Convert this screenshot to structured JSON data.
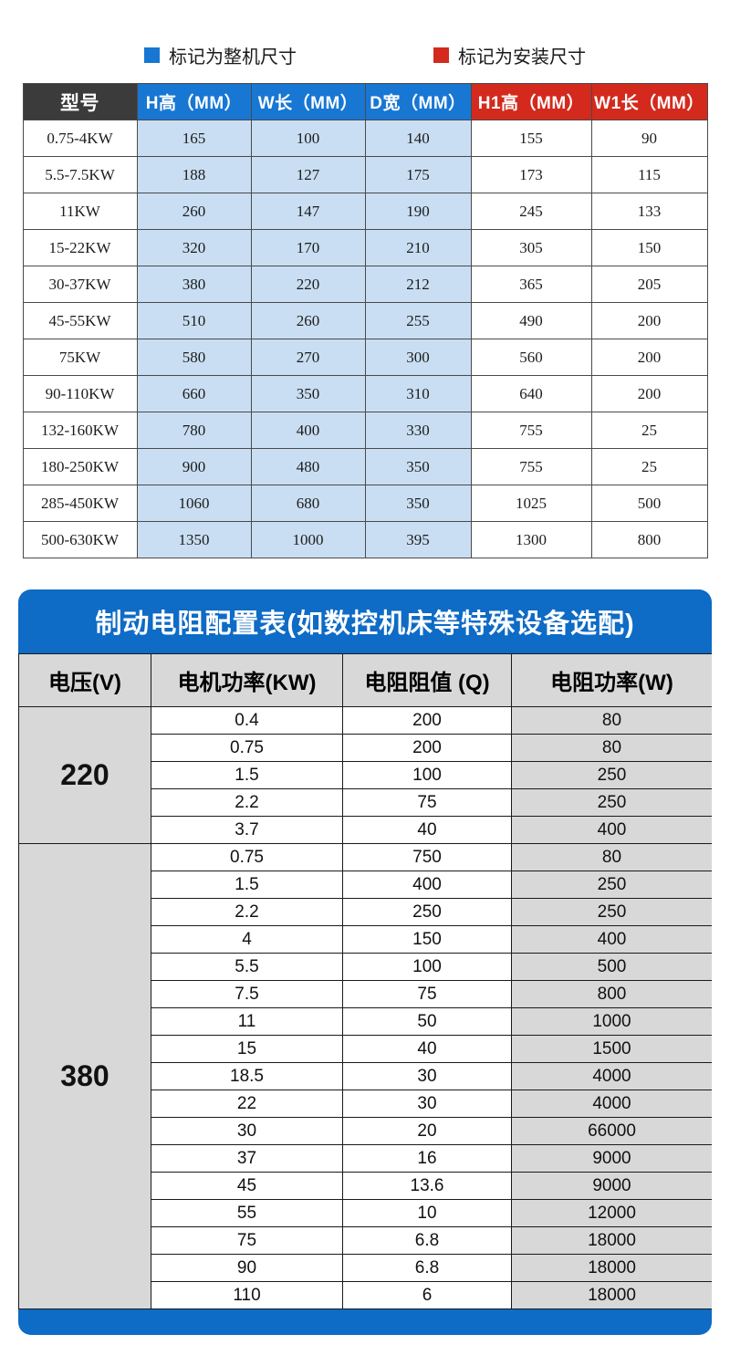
{
  "legend": {
    "whole_machine_label": "标记为整机尺寸",
    "install_label": "标记为安装尺寸"
  },
  "colors": {
    "blue_header": "#1777d3",
    "red_header": "#d32a1d",
    "dark_header": "#3b3b3b",
    "light_blue_cell": "#c9def2",
    "banner_blue": "#0e6bc6",
    "gray_cell": "#d8d8d8"
  },
  "dim_table": {
    "headers": [
      "型号",
      "H高（MM）",
      "W长（MM）",
      "D宽（MM）",
      "H1高（MM）",
      "W1长（MM）"
    ],
    "rows": [
      [
        "0.75-4KW",
        "165",
        "100",
        "140",
        "155",
        "90"
      ],
      [
        "5.5-7.5KW",
        "188",
        "127",
        "175",
        "173",
        "115"
      ],
      [
        "11KW",
        "260",
        "147",
        "190",
        "245",
        "133"
      ],
      [
        "15-22KW",
        "320",
        "170",
        "210",
        "305",
        "150"
      ],
      [
        "30-37KW",
        "380",
        "220",
        "212",
        "365",
        "205"
      ],
      [
        "45-55KW",
        "510",
        "260",
        "255",
        "490",
        "200"
      ],
      [
        "75KW",
        "580",
        "270",
        "300",
        "560",
        "200"
      ],
      [
        "90-110KW",
        "660",
        "350",
        "310",
        "640",
        "200"
      ],
      [
        "132-160KW",
        "780",
        "400",
        "330",
        "755",
        "25"
      ],
      [
        "180-250KW",
        "900",
        "480",
        "350",
        "755",
        "25"
      ],
      [
        "285-450KW",
        "1060",
        "680",
        "350",
        "1025",
        "500"
      ],
      [
        "500-630KW",
        "1350",
        "1000",
        "395",
        "1300",
        "800"
      ]
    ]
  },
  "resistor_table": {
    "title": "制动电阻配置表(如数控机床等特殊设备选配)",
    "headers": [
      "电压(V)",
      "电机功率(KW)",
      "电阻阻值 (Q)",
      "电阻功率(W)"
    ],
    "groups": [
      {
        "voltage": "220",
        "rows": [
          [
            "0.4",
            "200",
            "80"
          ],
          [
            "0.75",
            "200",
            "80"
          ],
          [
            "1.5",
            "100",
            "250"
          ],
          [
            "2.2",
            "75",
            "250"
          ],
          [
            "3.7",
            "40",
            "400"
          ]
        ]
      },
      {
        "voltage": "380",
        "rows": [
          [
            "0.75",
            "750",
            "80"
          ],
          [
            "1.5",
            "400",
            "250"
          ],
          [
            "2.2",
            "250",
            "250"
          ],
          [
            "4",
            "150",
            "400"
          ],
          [
            "5.5",
            "100",
            "500"
          ],
          [
            "7.5",
            "75",
            "800"
          ],
          [
            "11",
            "50",
            "1000"
          ],
          [
            "15",
            "40",
            "1500"
          ],
          [
            "18.5",
            "30",
            "4000"
          ],
          [
            "22",
            "30",
            "4000"
          ],
          [
            "30",
            "20",
            "66000"
          ],
          [
            "37",
            "16",
            "9000"
          ],
          [
            "45",
            "13.6",
            "9000"
          ],
          [
            "55",
            "10",
            "12000"
          ],
          [
            "75",
            "6.8",
            "18000"
          ],
          [
            "90",
            "6.8",
            "18000"
          ],
          [
            "110",
            "6",
            "18000"
          ]
        ]
      }
    ]
  }
}
